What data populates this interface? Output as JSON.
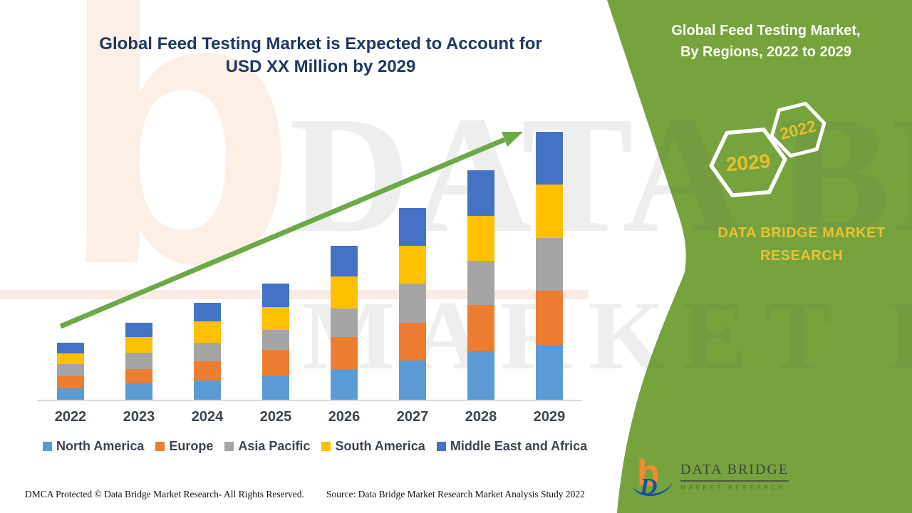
{
  "chart": {
    "title_line1": "Global Feed Testing Market is Expected to Account for",
    "title_line2": "USD XX Million by 2029",
    "title_color": "#1F3864"
  },
  "chart_data": {
    "type": "bar",
    "stacked": true,
    "title": "Global Feed Testing Market is Expected to Account for USD XX Million by 2029",
    "xlabel": "",
    "ylabel": "",
    "value_axis": "hidden (values unlabeled, market size in USD XX Million)",
    "unit": "relative height units estimated from pixels",
    "categories": [
      "2022",
      "2023",
      "2024",
      "2025",
      "2026",
      "2027",
      "2028",
      "2029"
    ],
    "series": [
      {
        "name": "North America",
        "color": "#5B9BD5",
        "values": [
          16,
          23,
          27,
          33,
          43,
          55,
          68,
          77
        ]
      },
      {
        "name": "Europe",
        "color": "#ED7D31",
        "values": [
          17,
          20,
          27,
          37,
          45,
          53,
          65,
          76
        ]
      },
      {
        "name": "Asia Pacific",
        "color": "#A5A5A5",
        "values": [
          17,
          23,
          26,
          28,
          40,
          55,
          62,
          74
        ]
      },
      {
        "name": "South America",
        "color": "#FFC000",
        "values": [
          15,
          22,
          30,
          32,
          45,
          53,
          63,
          75
        ]
      },
      {
        "name": "Middle East and Africa",
        "color": "#4472C4",
        "values": [
          15,
          20,
          26,
          33,
          43,
          53,
          64,
          74
        ]
      }
    ],
    "totals": [
      80,
      108,
      136,
      163,
      216,
      269,
      322,
      376
    ],
    "legend_position": "bottom",
    "grid": false,
    "trend_arrow": {
      "present": true,
      "color": "#6CA947",
      "direction": "up-right"
    }
  },
  "side_panel": {
    "bg_color": "#76A33E",
    "title_line1": "Global Feed Testing Market,",
    "title_line2": "By Regions, 2022 to 2029",
    "hexagons": [
      {
        "label": "2029"
      },
      {
        "label": "2022"
      }
    ],
    "hexagon_text_color": "#E5C02F",
    "brand_line1": "DATA BRIDGE MARKET",
    "brand_line2": "RESEARCH",
    "brand_color": "#E9C233"
  },
  "logo": {
    "name_text": "DATA BRIDGE",
    "sub_text": "MARKET RESEARCH",
    "mark_b_glyph": "b",
    "mark_d_glyph": "D",
    "orange": "#F18A34",
    "blue": "#1E4F9C"
  },
  "footer": {
    "dmca": "DMCA Protected © Data Bridge Market Research- All Rights Reserved.",
    "source": "Source: Data Bridge Market Research Market Analysis Study 2022"
  },
  "watermark": {
    "logo_glyph": "b",
    "line1": "DATA BRIDGE",
    "line2": "MARKET RESEARCH"
  }
}
